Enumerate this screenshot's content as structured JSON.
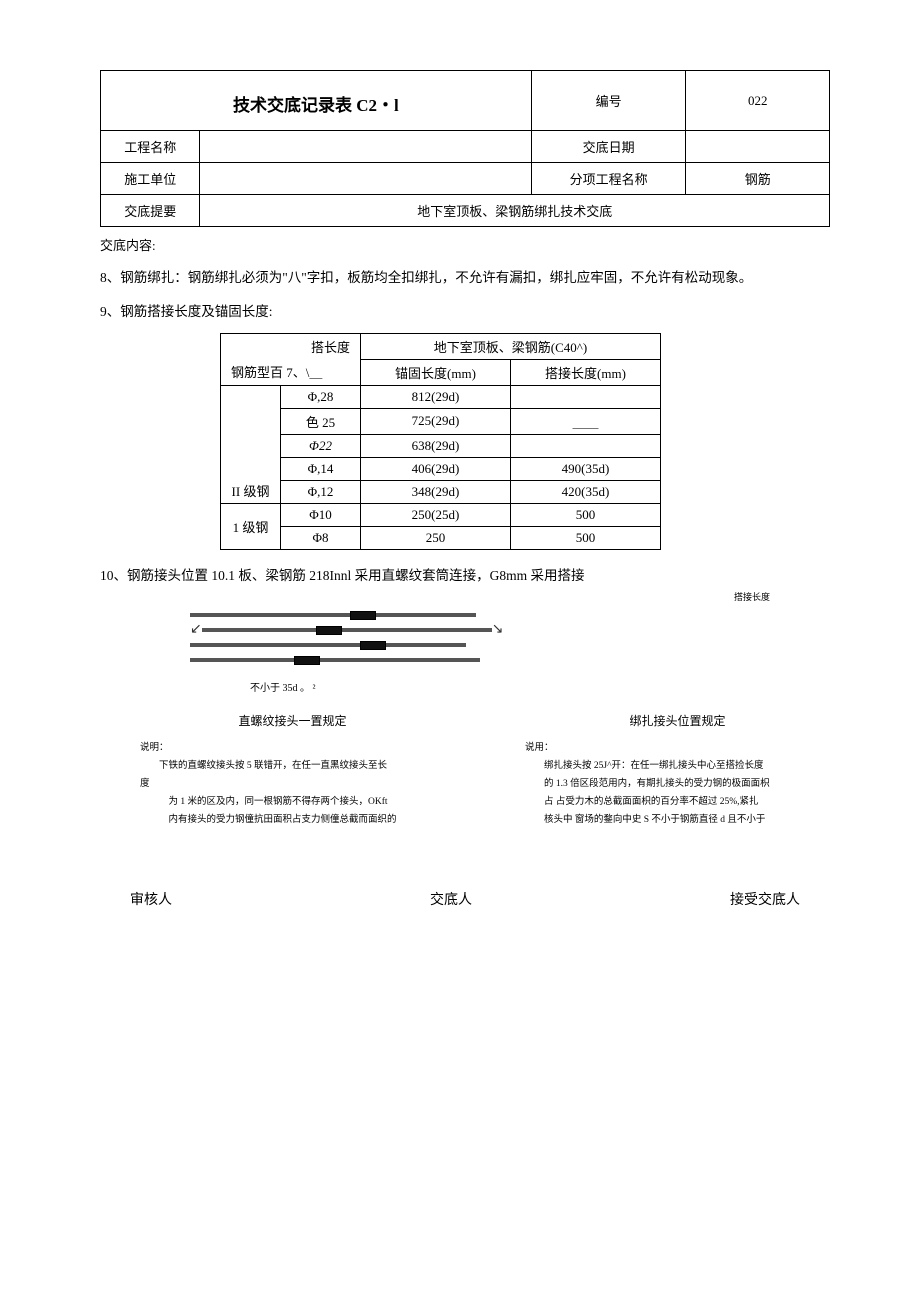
{
  "header": {
    "title": "技术交底记录表 C2・l",
    "num_label": "编号",
    "num_value": "022",
    "row1_label": "工程名称",
    "row1_value": "",
    "row1_right_label": "交底日期",
    "row1_right_value": "",
    "row2_label": "施工单位",
    "row2_value": "",
    "row2_right_label": "分项工程名称",
    "row2_right_value": "钢筋",
    "row3_label": "交底提要",
    "row3_value": "地下室顶板、梁钢筋绑扎技术交底"
  },
  "content_label": "交底内容:",
  "p8": "8、钢筋绑扎：钢筋绑扎必须为\"八\"字扣，板筋均全扣绑扎，不允许有漏扣，绑扎应牢固，不允许有松动现象。",
  "p9": "9、钢筋搭接长度及锚固长度:",
  "table": {
    "h_top_left": "搭长度",
    "h_top_right": "地下室顶板、梁钢筋(C40^)",
    "h_sub_left": "钢筋型百 7、\\＿",
    "h_anchor": "锚固长度(mm)",
    "h_lap": "搭接长度(mm)",
    "rows": [
      {
        "grade": "II 级钢",
        "spec": "Φ,28",
        "anchor": "812(29d)",
        "lap": ""
      },
      {
        "grade": "",
        "spec": "色 25",
        "anchor": "725(29d)",
        "lap": "＿＿"
      },
      {
        "grade": "",
        "spec": "Φ22",
        "anchor": "638(29d)",
        "lap": "",
        "italic": true
      },
      {
        "grade": "",
        "spec": "Φ,14",
        "anchor": "406(29d)",
        "lap": "490(35d)"
      },
      {
        "grade": "",
        "spec": "Φ,12",
        "anchor": "348(29d)",
        "lap": "420(35d)"
      },
      {
        "grade": "1 级钢",
        "spec": "Φ10",
        "anchor": "250(25d)",
        "lap": "500"
      },
      {
        "grade": "",
        "spec": "Φ8",
        "anchor": "250",
        "lap": "500"
      }
    ]
  },
  "sec10": "10、钢筋接头位置 10.1 板、梁钢筋 218Innl 采用直螺纹套筒连接，G8mm 采用搭接",
  "caption_right": "搭接长度",
  "note35d": "不小于 35d 。 ²",
  "left_col": {
    "title": "直螺纹接头一置规定",
    "label": "说明：",
    "l1": "下铁的直螺纹接头按 5 联错开，在任一直黑纹接头至长",
    "l2": "度",
    "l3": "为 1 米的区及内，同一根钢筋不得存两个接头，OKft",
    "l4": "内有接头的受力钢僮抗田面积占支力侧僮总截而面织的"
  },
  "right_col": {
    "title": "绑扎接头位置规定",
    "label": "说用：",
    "l1": "绑扎接头按 25J^开：在任一绑扎接头中心至搭捡长度",
    "l2": "的 1.3 倍区段范用内，有期扎接头的受力钢的极面面枳",
    "l3": "占 占受力木的总截面面枳的百分率不超过 25%,紧扎",
    "l4": "核头中 窗场的鍪向中史 S 不小于钢筋直径 d 且不小于"
  },
  "sign": {
    "approver": "审核人",
    "submitter": "交底人",
    "receiver": "接受交底人"
  },
  "style": {
    "diagram": {
      "bar_color": "#333",
      "r1": {
        "b1": 160,
        "b2": 100
      },
      "r2": {
        "lead": 24,
        "b1": 90,
        "b2": 150
      },
      "r3": {
        "b1": 170,
        "b2": 80
      },
      "r4": {
        "lead": 34,
        "b1": 70,
        "b2": 160
      }
    }
  }
}
